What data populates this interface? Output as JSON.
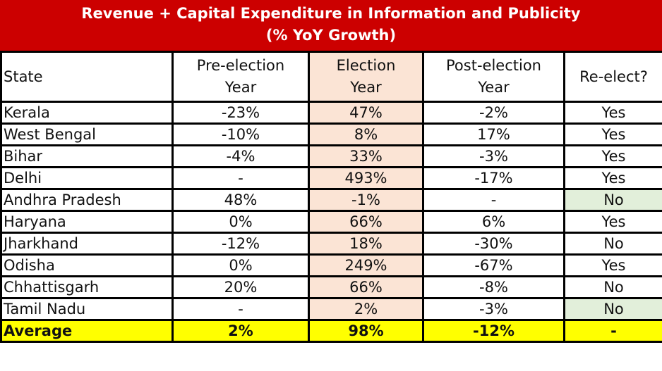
{
  "title": {
    "line1": "Revenue + Capital Expenditure in Information and Publicity",
    "line2": "(% YoY Growth)"
  },
  "headers": {
    "state": "State",
    "pre_line1": "Pre-election",
    "pre_line2": "Year",
    "elec_line1": "Election",
    "elec_line2": "Year",
    "post_line1": "Post-election",
    "post_line2": "Year",
    "reelect": "Re-elect?"
  },
  "rows": [
    {
      "state": "Kerala",
      "pre": "-23%",
      "election": "47%",
      "post": "-2%",
      "reelect": "Yes"
    },
    {
      "state": "West Bengal",
      "pre": "-10%",
      "election": "8%",
      "post": "17%",
      "reelect": "Yes"
    },
    {
      "state": "Bihar",
      "pre": "-4%",
      "election": "33%",
      "post": "-3%",
      "reelect": "Yes"
    },
    {
      "state": "Delhi",
      "pre": "-",
      "election": "493%",
      "post": "-17%",
      "reelect": "Yes"
    },
    {
      "state": "Andhra Pradesh",
      "pre": "48%",
      "election": "-1%",
      "post": "-",
      "reelect": "No"
    },
    {
      "state": "Haryana",
      "pre": "0%",
      "election": "66%",
      "post": "6%",
      "reelect": "Yes"
    },
    {
      "state": "Jharkhand",
      "pre": "-12%",
      "election": "18%",
      "post": "-30%",
      "reelect": "No"
    },
    {
      "state": "Odisha",
      "pre": "0%",
      "election": "249%",
      "post": "-67%",
      "reelect": "Yes"
    },
    {
      "state": "Chhattisgarh",
      "pre": "20%",
      "election": "66%",
      "post": "-8%",
      "reelect": "No"
    },
    {
      "state": "Tamil Nadu",
      "pre": "-",
      "election": "2%",
      "post": "-3%",
      "reelect": "No"
    }
  ],
  "average": {
    "state": "Average",
    "pre": "2%",
    "election": "98%",
    "post": "-12%",
    "reelect": "-"
  },
  "colors": {
    "title_bg": "#cc0000",
    "election_col_bg": "#fbe4d5",
    "no_highlight_bg": "#e2efda",
    "average_bg": "#ffff00"
  }
}
